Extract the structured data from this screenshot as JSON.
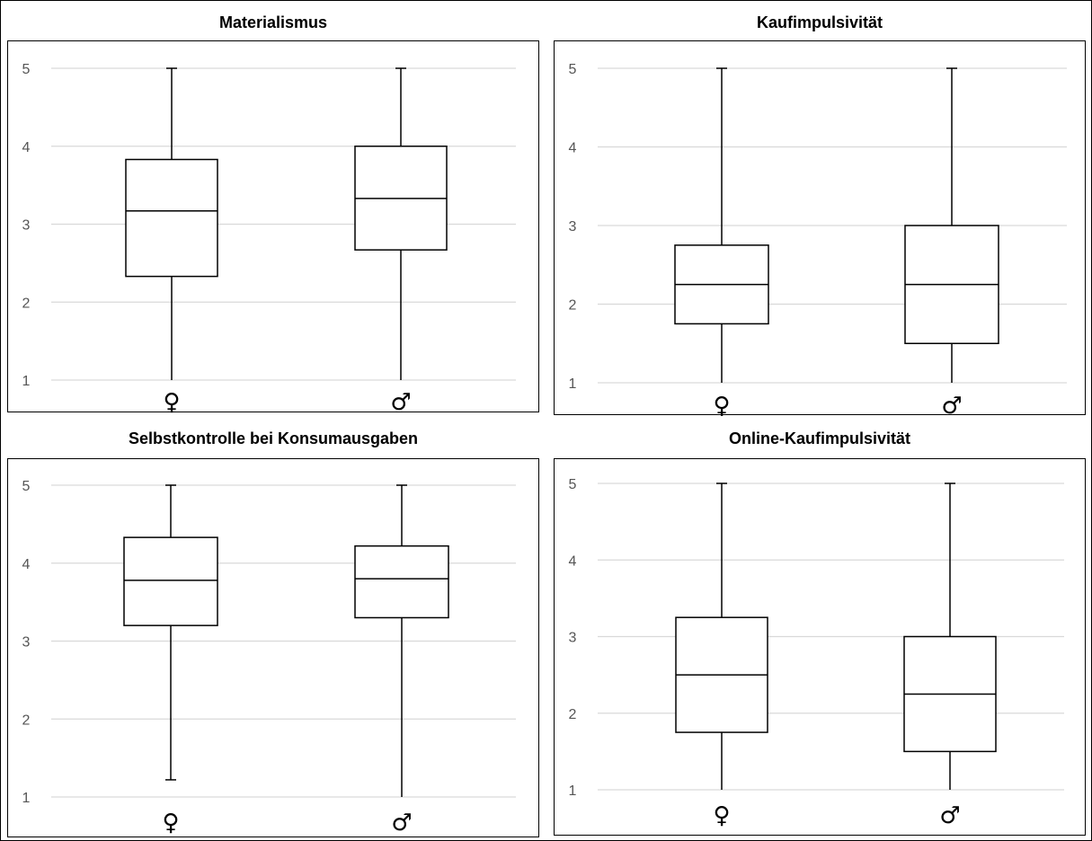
{
  "chart_data": [
    {
      "type": "boxplot",
      "title": "Materialismus",
      "categories": [
        "♀",
        "♂"
      ],
      "ylim": [
        1,
        5
      ],
      "yticks": [
        1,
        2,
        3,
        4,
        5
      ],
      "grid": true,
      "boxes": [
        {
          "category": "♀",
          "min": 1,
          "q1": 2.33,
          "median": 3.17,
          "q3": 3.83,
          "max": 5
        },
        {
          "category": "♂",
          "min": 1,
          "q1": 2.67,
          "median": 3.33,
          "q3": 4.0,
          "max": 5
        }
      ]
    },
    {
      "type": "boxplot",
      "title": "Kaufimpulsivität",
      "categories": [
        "♀",
        "♂"
      ],
      "ylim": [
        1,
        5
      ],
      "yticks": [
        1,
        2,
        3,
        4,
        5
      ],
      "grid": true,
      "boxes": [
        {
          "category": "♀",
          "min": 1,
          "q1": 1.75,
          "median": 2.25,
          "q3": 2.75,
          "max": 5
        },
        {
          "category": "♂",
          "min": 1,
          "q1": 1.5,
          "median": 2.25,
          "q3": 3.0,
          "max": 5
        }
      ]
    },
    {
      "type": "boxplot",
      "title": "Selbstkontrolle bei Konsumausgaben",
      "categories": [
        "♀",
        "♂"
      ],
      "ylim": [
        1,
        5
      ],
      "yticks": [
        1,
        2,
        3,
        4,
        5
      ],
      "grid": true,
      "boxes": [
        {
          "category": "♀",
          "min": 1.22,
          "q1": 3.2,
          "median": 3.78,
          "q3": 4.33,
          "max": 5
        },
        {
          "category": "♂",
          "min": 1,
          "q1": 3.3,
          "median": 3.8,
          "q3": 4.22,
          "max": 5
        }
      ]
    },
    {
      "type": "boxplot",
      "title": "Online-Kaufimpulsivität",
      "categories": [
        "♀",
        "♂"
      ],
      "ylim": [
        1,
        5
      ],
      "yticks": [
        1,
        2,
        3,
        4,
        5
      ],
      "grid": true,
      "boxes": [
        {
          "category": "♀",
          "min": 1,
          "q1": 1.75,
          "median": 2.5,
          "q3": 3.25,
          "max": 5
        },
        {
          "category": "♂",
          "min": 1,
          "q1": 1.5,
          "median": 2.25,
          "q3": 3.0,
          "max": 5
        }
      ]
    }
  ],
  "colors": {
    "box_stroke": "#000000",
    "grid": "#d9d9d9",
    "tick_label": "#555555"
  }
}
